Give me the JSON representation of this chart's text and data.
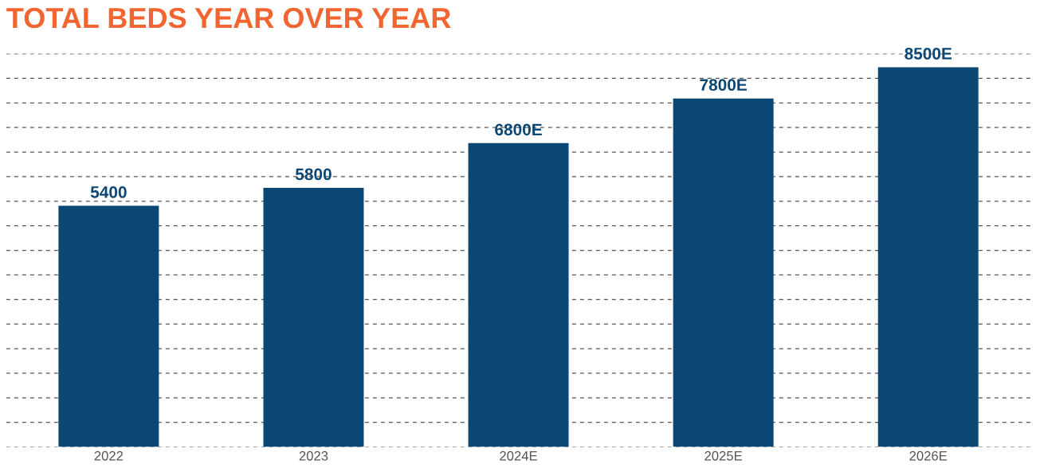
{
  "chart_data": {
    "type": "bar",
    "title": "TOTAL BEDS YEAR OVER YEAR",
    "categories": [
      "2022",
      "2023",
      "2024E",
      "2025E",
      "2026E"
    ],
    "values": [
      5400,
      5800,
      6800,
      7800,
      8500
    ],
    "value_labels": [
      "5400",
      "5800",
      "6800E",
      "7800E",
      "8500E"
    ],
    "color": "#0b4775",
    "ylim": [
      0,
      8800
    ],
    "yticks": [
      {
        "value": 0,
        "label": null
      },
      {
        "value": 550,
        "label": null
      },
      {
        "value": 1100,
        "label": null
      },
      {
        "value": 1650,
        "label": null
      },
      {
        "value": 2200,
        "label": null
      },
      {
        "value": 2750,
        "label": null
      },
      {
        "value": 3300,
        "label": null
      },
      {
        "value": 3850,
        "label": null
      },
      {
        "value": 4400,
        "label": null
      },
      {
        "value": 4950,
        "label": null
      },
      {
        "value": 5500,
        "label": null
      },
      {
        "value": 6050,
        "label": null
      },
      {
        "value": 6600,
        "label": null
      },
      {
        "value": 7150,
        "label": null
      },
      {
        "value": 7700,
        "label": null
      },
      {
        "value": 8250,
        "label": null
      },
      {
        "value": 8800,
        "label": null
      }
    ],
    "grid": "y",
    "tick_labels": "x"
  }
}
